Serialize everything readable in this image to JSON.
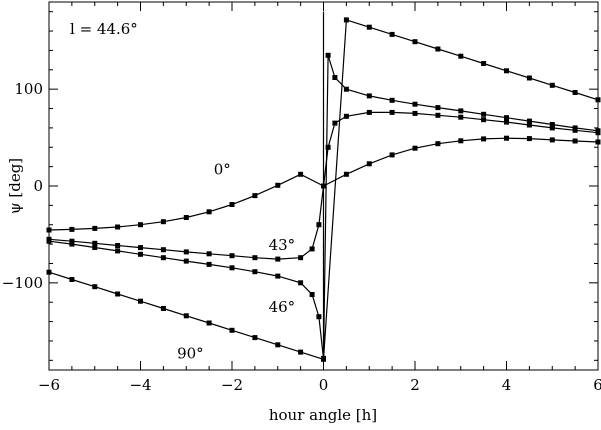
{
  "chart_data": {
    "type": "line",
    "annotation": "l = 44.6°",
    "xlabel": "hour angle [h]",
    "ylabel": "ψ [deg]",
    "xlim": [
      -6,
      6
    ],
    "ylim": [
      -190,
      190
    ],
    "xticks": [
      -6,
      -4,
      -2,
      0,
      2,
      4,
      6
    ],
    "yticks": [
      -100,
      0,
      100
    ],
    "grid": false,
    "markers": "square",
    "series": [
      {
        "name": "0°",
        "x": [
          -6,
          -5.5,
          -5,
          -4.5,
          -4,
          -3.5,
          -3,
          -2.5,
          -2,
          -1.5,
          -1,
          -0.5,
          0,
          0.5,
          1,
          1.5,
          2,
          2.5,
          3,
          3.5,
          4,
          4.5,
          5,
          5.5,
          6
        ],
        "values": [
          -45.4,
          -44.8,
          -43.8,
          -42.3,
          -40.0,
          -36.9,
          -32.5,
          -26.6,
          -19.1,
          -9.9,
          0.7,
          12.1,
          0,
          12.1,
          22.9,
          32.1,
          39.0,
          43.7,
          46.7,
          48.6,
          49.4,
          48.9,
          47.6,
          46.5,
          45.4
        ]
      },
      {
        "name": "43°",
        "x": [
          -6,
          -5.5,
          -5,
          -4.5,
          -4,
          -3.5,
          -3,
          -2.5,
          -2,
          -1.5,
          -1,
          -0.5,
          -0.25,
          -0.1,
          0,
          0.1,
          0.25,
          0.5,
          1,
          1.5,
          2,
          2.5,
          3,
          3.5,
          4,
          4.5,
          5,
          5.5,
          6
        ],
        "values": [
          -55.0,
          -57.0,
          -59.2,
          -61.4,
          -63.6,
          -65.8,
          -68.0,
          -70.0,
          -72.0,
          -74.0,
          -75.5,
          -74.0,
          -65.0,
          -40.0,
          0,
          40.0,
          65.0,
          72.0,
          76.0,
          76.0,
          75.0,
          73.0,
          71.0,
          68.5,
          66.0,
          63.0,
          60.0,
          57.5,
          55.0
        ]
      },
      {
        "name": "46°",
        "x": [
          -6,
          -5.5,
          -5,
          -4.5,
          -4,
          -3.5,
          -3,
          -2.5,
          -2,
          -1.5,
          -1,
          -0.5,
          -0.25,
          -0.1,
          0,
          0.1,
          0.25,
          0.5,
          1,
          1.5,
          2,
          2.5,
          3,
          3.5,
          4,
          4.5,
          5,
          5.5,
          6
        ],
        "values": [
          -57.0,
          -60.0,
          -63.5,
          -67.0,
          -70.5,
          -74.0,
          -77.5,
          -81.0,
          -84.5,
          -88.5,
          -93.0,
          -100.0,
          -112.0,
          -135.0,
          -178,
          135.0,
          112.0,
          100.0,
          93.0,
          88.5,
          84.5,
          81.0,
          77.5,
          74.0,
          70.5,
          67.0,
          63.5,
          60.0,
          57.0
        ]
      },
      {
        "name": "90°",
        "x": [
          -6,
          -5.5,
          -5,
          -4.5,
          -4,
          -3.5,
          -3,
          -2.5,
          -2,
          -1.5,
          -1,
          -0.5,
          0,
          0.5,
          1,
          1.5,
          2,
          2.5,
          3,
          3.5,
          4,
          4.5,
          5,
          5.5,
          6
        ],
        "values": [
          -89,
          -96.5,
          -104,
          -111.5,
          -119,
          -126.5,
          -134,
          -141.5,
          -149,
          -156.5,
          -164,
          -171.5,
          -179,
          171.5,
          164,
          156.5,
          149,
          141.5,
          134,
          126.5,
          119,
          111.5,
          104,
          96.5,
          89
        ]
      }
    ]
  }
}
